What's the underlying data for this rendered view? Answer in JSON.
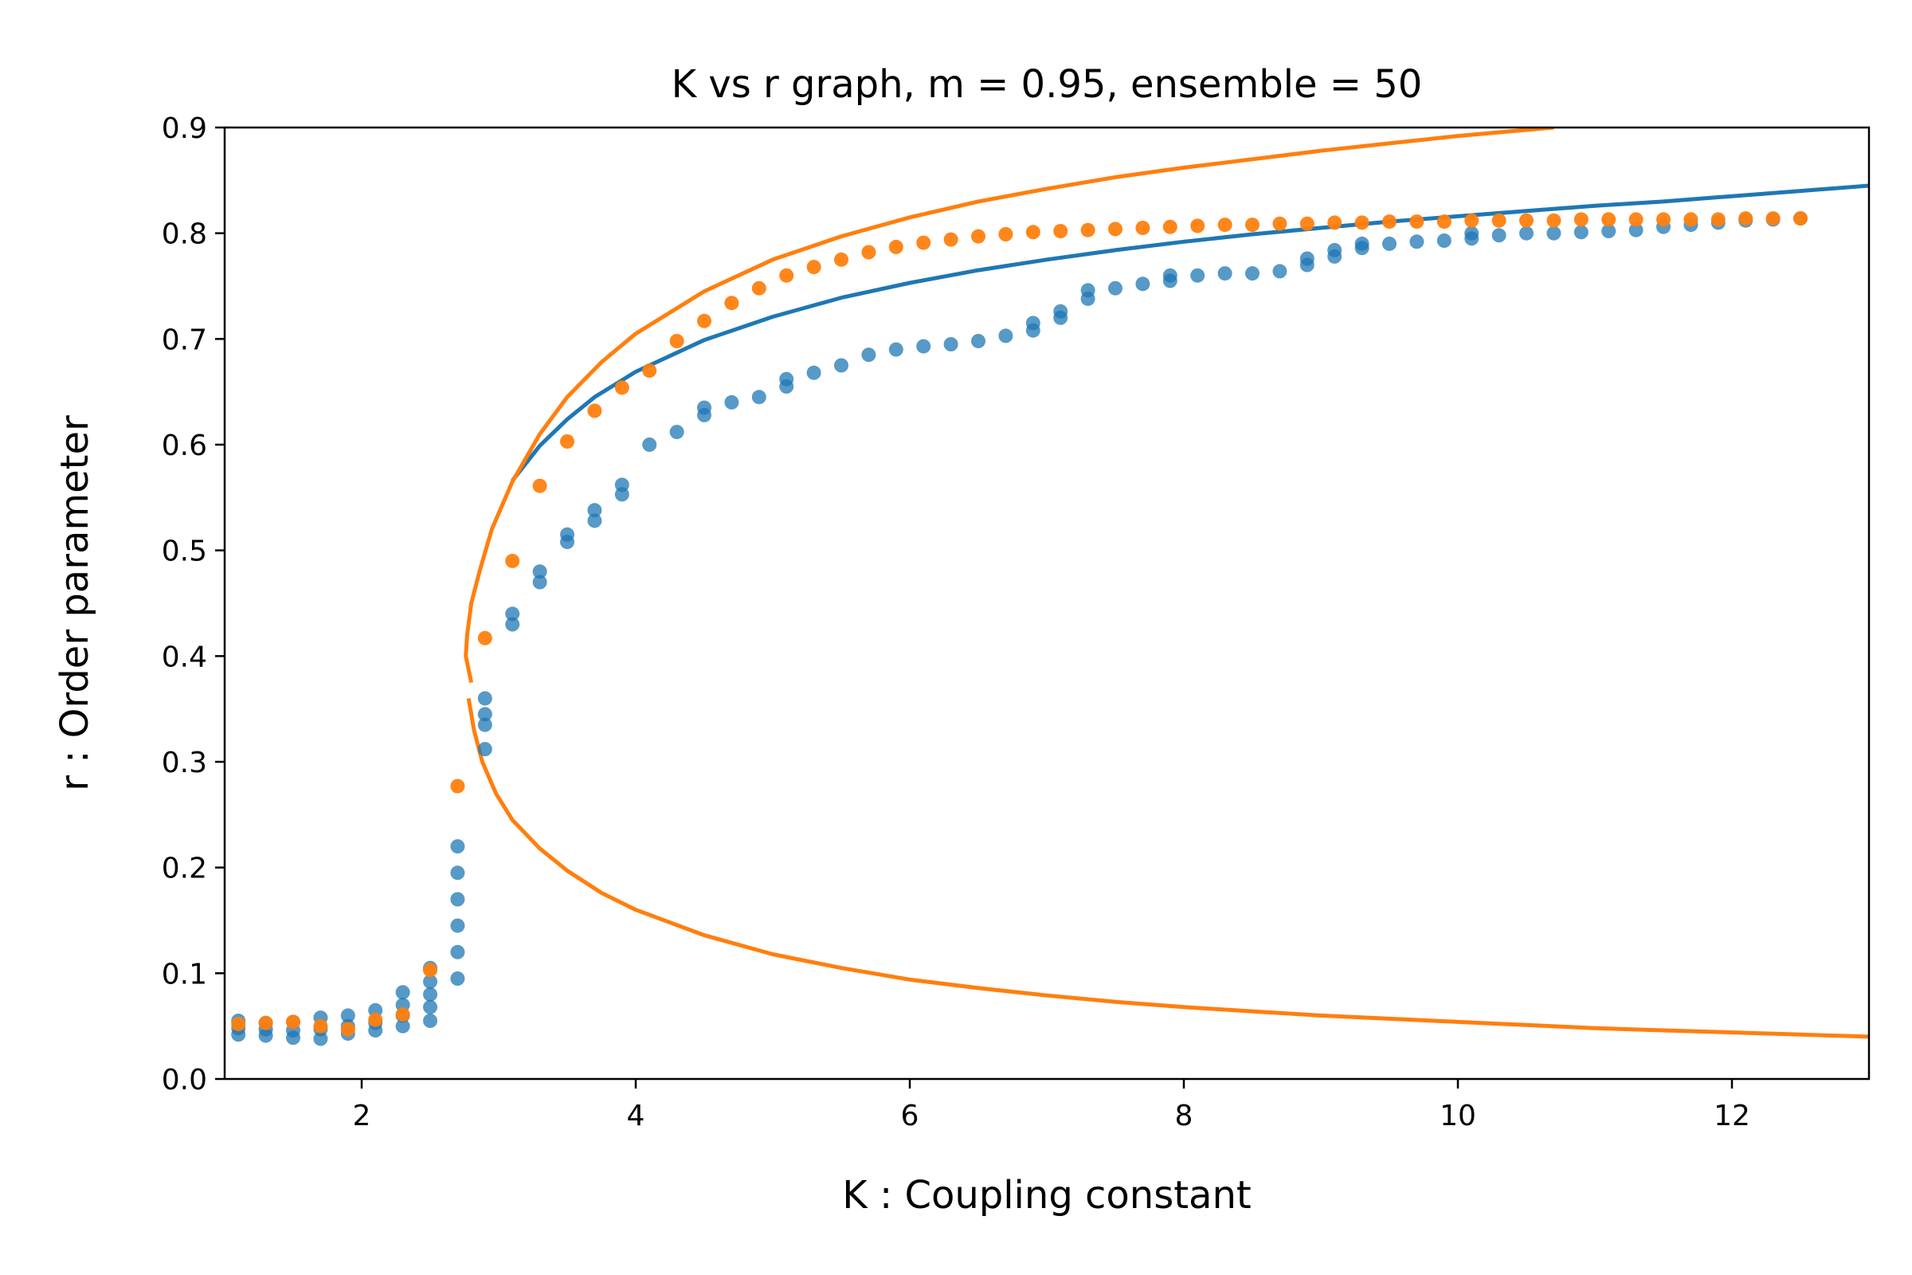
{
  "chart_data": {
    "type": "scatter",
    "title": "K vs r graph, m = 0.95, ensemble = 50",
    "xlabel": "K : Coupling constant",
    "ylabel": "r : Order parameter",
    "xlim": [
      1.0,
      13.0
    ],
    "ylim": [
      0.0,
      0.9
    ],
    "xticks": [
      2,
      4,
      6,
      8,
      10,
      12
    ],
    "yticks": [
      0.0,
      0.1,
      0.2,
      0.3,
      0.4,
      0.5,
      0.6,
      0.7,
      0.8,
      0.9
    ],
    "grid": false,
    "colors": {
      "blue": "#1f77b4",
      "orange": "#ff7f0e"
    },
    "scatter_series": [
      {
        "color": "#1f77b4",
        "points": [
          [
            1.1,
            0.042
          ],
          [
            1.1,
            0.048
          ],
          [
            1.1,
            0.055
          ],
          [
            1.3,
            0.041
          ],
          [
            1.3,
            0.047
          ],
          [
            1.3,
            0.053
          ],
          [
            1.5,
            0.039
          ],
          [
            1.5,
            0.046
          ],
          [
            1.5,
            0.054
          ],
          [
            1.7,
            0.038
          ],
          [
            1.7,
            0.047
          ],
          [
            1.7,
            0.058
          ],
          [
            1.9,
            0.043
          ],
          [
            1.9,
            0.05
          ],
          [
            1.9,
            0.06
          ],
          [
            2.1,
            0.046
          ],
          [
            2.1,
            0.053
          ],
          [
            2.1,
            0.065
          ],
          [
            2.3,
            0.05
          ],
          [
            2.3,
            0.06
          ],
          [
            2.3,
            0.07
          ],
          [
            2.3,
            0.082
          ],
          [
            2.5,
            0.055
          ],
          [
            2.5,
            0.068
          ],
          [
            2.5,
            0.08
          ],
          [
            2.5,
            0.092
          ],
          [
            2.5,
            0.105
          ],
          [
            2.7,
            0.095
          ],
          [
            2.7,
            0.12
          ],
          [
            2.7,
            0.145
          ],
          [
            2.7,
            0.17
          ],
          [
            2.7,
            0.195
          ],
          [
            2.7,
            0.22
          ],
          [
            2.9,
            0.312
          ],
          [
            2.9,
            0.335
          ],
          [
            2.9,
            0.345
          ],
          [
            2.9,
            0.36
          ],
          [
            3.1,
            0.43
          ],
          [
            3.1,
            0.44
          ],
          [
            3.3,
            0.47
          ],
          [
            3.3,
            0.48
          ],
          [
            3.5,
            0.508
          ],
          [
            3.5,
            0.515
          ],
          [
            3.7,
            0.528
          ],
          [
            3.7,
            0.538
          ],
          [
            3.9,
            0.553
          ],
          [
            3.9,
            0.562
          ],
          [
            4.1,
            0.6
          ],
          [
            4.3,
            0.612
          ],
          [
            4.5,
            0.628
          ],
          [
            4.5,
            0.635
          ],
          [
            4.7,
            0.64
          ],
          [
            4.9,
            0.645
          ],
          [
            5.1,
            0.655
          ],
          [
            5.1,
            0.662
          ],
          [
            5.3,
            0.668
          ],
          [
            5.5,
            0.675
          ],
          [
            5.7,
            0.685
          ],
          [
            5.9,
            0.69
          ],
          [
            6.1,
            0.693
          ],
          [
            6.3,
            0.695
          ],
          [
            6.5,
            0.698
          ],
          [
            6.7,
            0.703
          ],
          [
            6.9,
            0.708
          ],
          [
            6.9,
            0.715
          ],
          [
            7.1,
            0.72
          ],
          [
            7.1,
            0.726
          ],
          [
            7.3,
            0.738
          ],
          [
            7.3,
            0.746
          ],
          [
            7.5,
            0.748
          ],
          [
            7.7,
            0.752
          ],
          [
            7.9,
            0.755
          ],
          [
            7.9,
            0.76
          ],
          [
            8.1,
            0.76
          ],
          [
            8.3,
            0.762
          ],
          [
            8.5,
            0.762
          ],
          [
            8.7,
            0.764
          ],
          [
            8.9,
            0.77
          ],
          [
            8.9,
            0.776
          ],
          [
            9.1,
            0.778
          ],
          [
            9.1,
            0.784
          ],
          [
            9.3,
            0.786
          ],
          [
            9.3,
            0.79
          ],
          [
            9.5,
            0.79
          ],
          [
            9.7,
            0.792
          ],
          [
            9.9,
            0.793
          ],
          [
            10.1,
            0.795
          ],
          [
            10.1,
            0.8
          ],
          [
            10.3,
            0.798
          ],
          [
            10.5,
            0.8
          ],
          [
            10.7,
            0.8
          ],
          [
            10.9,
            0.801
          ],
          [
            11.1,
            0.802
          ],
          [
            11.3,
            0.803
          ],
          [
            11.5,
            0.806
          ],
          [
            11.7,
            0.808
          ],
          [
            11.9,
            0.81
          ],
          [
            12.1,
            0.812
          ],
          [
            12.3,
            0.813
          ],
          [
            12.5,
            0.814
          ]
        ]
      },
      {
        "color": "#ff7f0e",
        "points": [
          [
            1.1,
            0.052
          ],
          [
            1.3,
            0.053
          ],
          [
            1.5,
            0.054
          ],
          [
            1.7,
            0.05
          ],
          [
            1.9,
            0.047
          ],
          [
            2.1,
            0.056
          ],
          [
            2.3,
            0.061
          ],
          [
            2.5,
            0.103
          ],
          [
            2.7,
            0.277
          ],
          [
            2.9,
            0.417
          ],
          [
            3.1,
            0.49
          ],
          [
            3.3,
            0.561
          ],
          [
            3.5,
            0.603
          ],
          [
            3.7,
            0.632
          ],
          [
            3.9,
            0.654
          ],
          [
            4.1,
            0.67
          ],
          [
            4.3,
            0.698
          ],
          [
            4.5,
            0.717
          ],
          [
            4.7,
            0.734
          ],
          [
            4.9,
            0.748
          ],
          [
            5.1,
            0.76
          ],
          [
            5.3,
            0.768
          ],
          [
            5.5,
            0.775
          ],
          [
            5.7,
            0.782
          ],
          [
            5.9,
            0.787
          ],
          [
            6.1,
            0.791
          ],
          [
            6.3,
            0.794
          ],
          [
            6.5,
            0.797
          ],
          [
            6.7,
            0.799
          ],
          [
            6.9,
            0.801
          ],
          [
            7.1,
            0.802
          ],
          [
            7.3,
            0.803
          ],
          [
            7.5,
            0.804
          ],
          [
            7.7,
            0.805
          ],
          [
            7.9,
            0.806
          ],
          [
            8.1,
            0.807
          ],
          [
            8.3,
            0.808
          ],
          [
            8.5,
            0.808
          ],
          [
            8.7,
            0.809
          ],
          [
            8.9,
            0.809
          ],
          [
            9.1,
            0.81
          ],
          [
            9.3,
            0.81
          ],
          [
            9.5,
            0.811
          ],
          [
            9.7,
            0.811
          ],
          [
            9.9,
            0.811
          ],
          [
            10.1,
            0.812
          ],
          [
            10.3,
            0.812
          ],
          [
            10.5,
            0.812
          ],
          [
            10.7,
            0.812
          ],
          [
            10.9,
            0.813
          ],
          [
            11.1,
            0.813
          ],
          [
            11.3,
            0.813
          ],
          [
            11.5,
            0.813
          ],
          [
            11.7,
            0.813
          ],
          [
            11.9,
            0.813
          ],
          [
            12.1,
            0.814
          ],
          [
            12.3,
            0.814
          ],
          [
            12.5,
            0.814
          ]
        ]
      }
    ],
    "line_series": [
      {
        "color": "#1f77b4",
        "points": [
          [
            3.1,
            0.566
          ],
          [
            3.3,
            0.599
          ],
          [
            3.5,
            0.624
          ],
          [
            3.7,
            0.645
          ],
          [
            4.0,
            0.669
          ],
          [
            4.5,
            0.699
          ],
          [
            5.0,
            0.721
          ],
          [
            5.5,
            0.739
          ],
          [
            6.0,
            0.753
          ],
          [
            6.5,
            0.765
          ],
          [
            7.0,
            0.775
          ],
          [
            7.5,
            0.784
          ],
          [
            8.0,
            0.792
          ],
          [
            8.5,
            0.799
          ],
          [
            9.0,
            0.805
          ],
          [
            9.5,
            0.811
          ],
          [
            10.0,
            0.816
          ],
          [
            10.5,
            0.821
          ],
          [
            11.0,
            0.826
          ],
          [
            11.5,
            0.83
          ],
          [
            12.0,
            0.835
          ],
          [
            12.5,
            0.84
          ],
          [
            13.0,
            0.845
          ]
        ]
      },
      {
        "color": "#ff7f0e",
        "points": [
          [
            2.8,
            0.375
          ],
          [
            2.76,
            0.4
          ],
          [
            2.77,
            0.42
          ],
          [
            2.8,
            0.45
          ],
          [
            2.86,
            0.48
          ],
          [
            2.95,
            0.52
          ],
          [
            3.1,
            0.565
          ],
          [
            3.3,
            0.61
          ],
          [
            3.5,
            0.645
          ],
          [
            3.75,
            0.678
          ],
          [
            4.0,
            0.705
          ],
          [
            4.5,
            0.745
          ],
          [
            5.0,
            0.775
          ],
          [
            5.5,
            0.797
          ],
          [
            6.0,
            0.815
          ],
          [
            6.5,
            0.83
          ],
          [
            7.0,
            0.842
          ],
          [
            7.5,
            0.853
          ],
          [
            8.0,
            0.862
          ],
          [
            8.5,
            0.87
          ],
          [
            9.0,
            0.878
          ],
          [
            9.5,
            0.885
          ],
          [
            10.0,
            0.892
          ],
          [
            10.7,
            0.9
          ]
        ]
      },
      {
        "color": "#ff7f0e",
        "points": [
          [
            2.78,
            0.36
          ],
          [
            2.82,
            0.33
          ],
          [
            2.88,
            0.3
          ],
          [
            2.98,
            0.27
          ],
          [
            3.1,
            0.245
          ],
          [
            3.3,
            0.218
          ],
          [
            3.5,
            0.197
          ],
          [
            3.75,
            0.176
          ],
          [
            4.0,
            0.16
          ],
          [
            4.5,
            0.136
          ],
          [
            5.0,
            0.118
          ],
          [
            5.5,
            0.105
          ],
          [
            6.0,
            0.094
          ],
          [
            6.5,
            0.086
          ],
          [
            7.0,
            0.079
          ],
          [
            7.5,
            0.073
          ],
          [
            8.0,
            0.068
          ],
          [
            8.5,
            0.064
          ],
          [
            9.0,
            0.06
          ],
          [
            9.5,
            0.057
          ],
          [
            10.0,
            0.054
          ],
          [
            10.5,
            0.051
          ],
          [
            11.0,
            0.048
          ],
          [
            11.5,
            0.046
          ],
          [
            12.0,
            0.044
          ],
          [
            12.5,
            0.042
          ],
          [
            13.0,
            0.04
          ]
        ]
      }
    ]
  }
}
